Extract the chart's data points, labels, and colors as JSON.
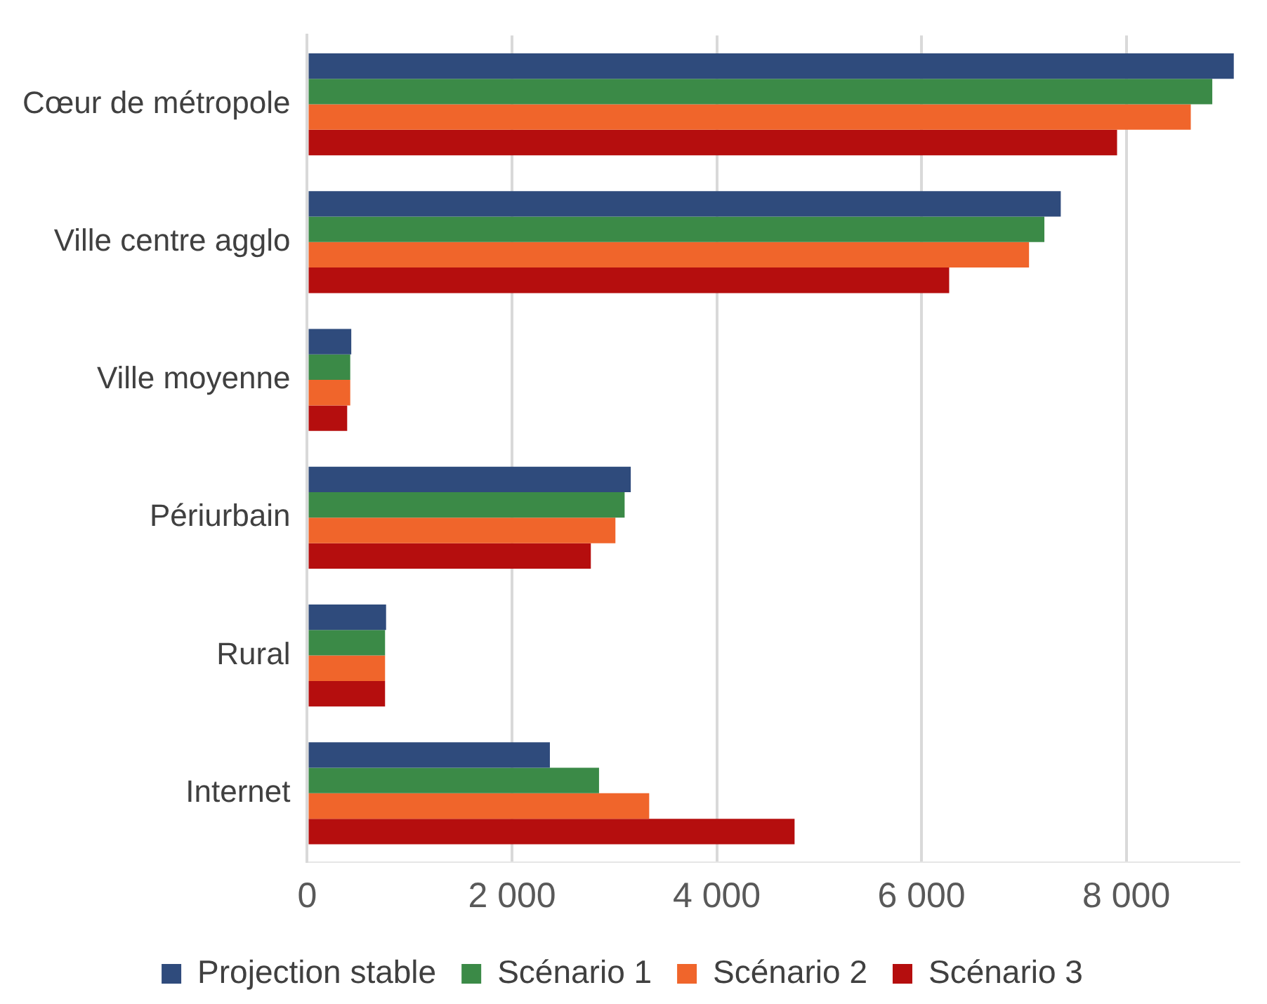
{
  "chart_data": {
    "type": "bar",
    "orientation": "horizontal",
    "categories": [
      "Cœur de métropole",
      "Ville centre agglo",
      "Ville moyenne",
      "Périurbain",
      "Rural",
      "Internet"
    ],
    "series": [
      {
        "name": "Projection stable",
        "color": "#2f4b7c",
        "values": [
          9050,
          7360,
          430,
          3160,
          770,
          2370
        ]
      },
      {
        "name": "Scénario 1",
        "color": "#3b8a47",
        "values": [
          8840,
          7200,
          420,
          3100,
          760,
          2850
        ]
      },
      {
        "name": "Scénario 2",
        "color": "#f0652b",
        "values": [
          8630,
          7050,
          420,
          3010,
          760,
          3340
        ]
      },
      {
        "name": "Scénario 3",
        "color": "#b50e0e",
        "values": [
          7910,
          6270,
          390,
          2770,
          760,
          4760
        ]
      }
    ],
    "xlim": [
      0,
      9100
    ],
    "xticks": [
      0,
      {
        "value": 2000,
        "label": "2 000"
      },
      {
        "value": 4000,
        "label": "4 000"
      },
      {
        "value": 6000,
        "label": "6 000"
      },
      {
        "value": 8000,
        "label": "8 000"
      }
    ],
    "grid": "x",
    "legend": "bottom"
  }
}
